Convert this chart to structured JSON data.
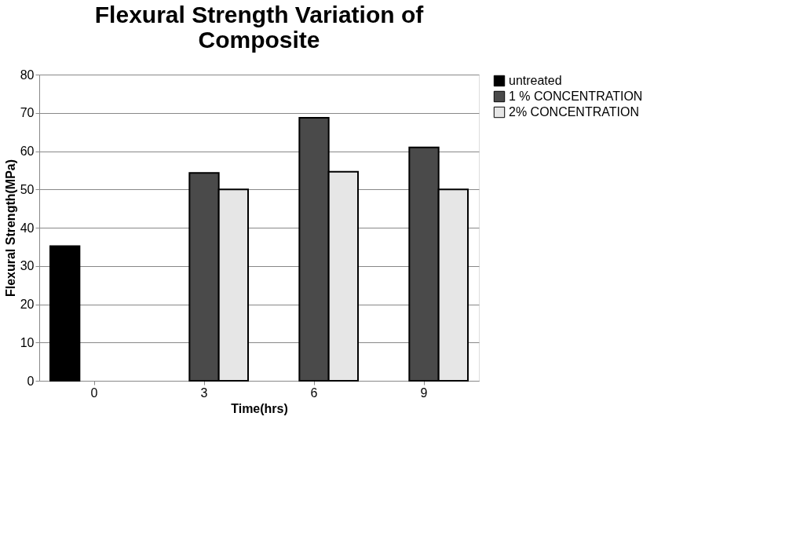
{
  "chart_data": {
    "type": "bar",
    "title": "Flexural Strength Variation of Composite",
    "xlabel": "Time(hrs)",
    "ylabel": "Flexural Strength(MPa)",
    "categories": [
      "0",
      "3",
      "6",
      "9"
    ],
    "series": [
      {
        "name": "untreated",
        "color": "#000000",
        "values": [
          35.2,
          null,
          null,
          null
        ]
      },
      {
        "name": "1 % CONCENTRATION",
        "color": "#4a4a4a",
        "values": [
          null,
          54.3,
          68.7,
          61
        ]
      },
      {
        "name": "2% CONCENTRATION",
        "color": "#e6e6e6",
        "values": [
          null,
          50,
          54.6,
          50
        ]
      }
    ],
    "ylim": [
      0,
      80
    ],
    "yticks": [
      0,
      10,
      20,
      30,
      40,
      50,
      60,
      70,
      80
    ],
    "grid": "y",
    "legend": "right"
  }
}
